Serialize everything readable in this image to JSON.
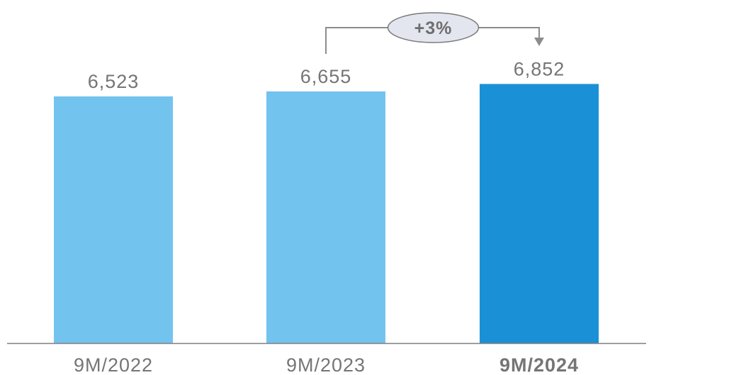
{
  "chart_data": {
    "type": "bar",
    "categories": [
      "9M/2022",
      "9M/2023",
      "9M/2024"
    ],
    "values": [
      6523,
      6655,
      6852
    ],
    "value_labels": [
      "6,523",
      "6,655",
      "6,852"
    ],
    "title": "",
    "xlabel": "",
    "ylabel": "",
    "highlight_index": 2,
    "colors": {
      "bar": "#73c3ef",
      "bar_highlight": "#1a91d6",
      "label_text": "#757575",
      "axis": "#7f7f7f",
      "connector": "#8c8c8c",
      "bubble_fill": "#e3e6ee",
      "bubble_text": "#6e6e6e"
    },
    "grid": false,
    "legend": "none",
    "annotation": {
      "type": "growth-connector",
      "from_index": 1,
      "to_index": 2,
      "label": "+3%"
    }
  }
}
